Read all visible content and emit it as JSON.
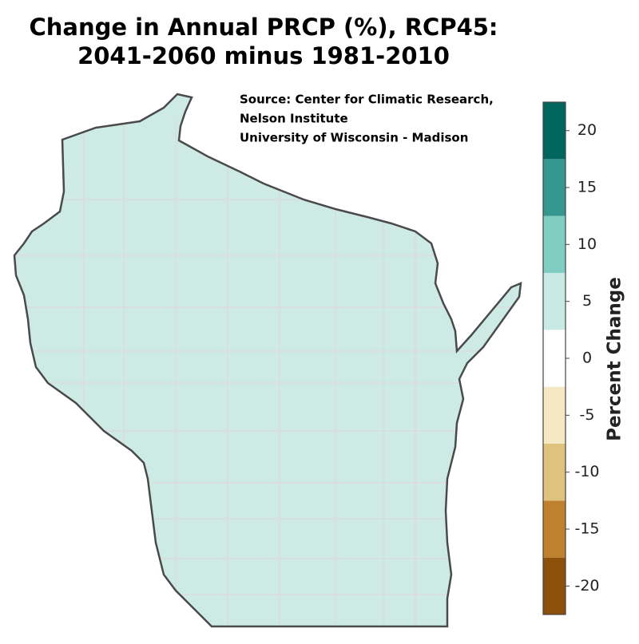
{
  "title": [
    "Change in Annual PRCP (%), RCP45:",
    "2041-2060 minus 1981-2010"
  ],
  "source": [
    "Source:  Center for Climatic Research,",
    "Nelson Institute",
    "University of Wisconsin - Madison"
  ],
  "map": {
    "fill": "#cdeae5",
    "outline": "#4a4a4a",
    "county_line": "#dcdcdc"
  },
  "legend": {
    "label": "Percent Change",
    "lim": [
      -22.5,
      22.5
    ],
    "ticks": [
      -20,
      -15,
      -10,
      -5,
      0,
      5,
      10,
      15,
      20
    ],
    "colors": [
      "#8c510a",
      "#bf812d",
      "#dfc27d",
      "#f6e8c3",
      "#ffffff",
      "#c7eae5",
      "#80cdc1",
      "#35978f",
      "#01665e"
    ]
  }
}
